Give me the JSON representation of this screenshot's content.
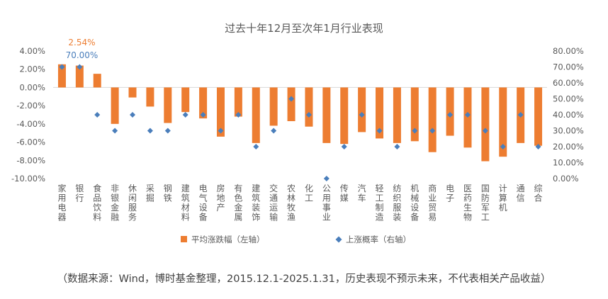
{
  "chart_data": {
    "type": "bar",
    "title": "过去十年12月至次年1月行业表现",
    "categories": [
      "家用电器",
      "银行",
      "食品饮料",
      "非银金融",
      "休闲服务",
      "采掘",
      "钢铁",
      "建筑材料",
      "电气设备",
      "房地产",
      "有色金属",
      "建筑装饰",
      "交通运输",
      "农林牧渔",
      "化工",
      "公用事业",
      "传媒",
      "汽车",
      "轻工制造",
      "纺织服装",
      "机械设备",
      "商业贸易",
      "电子",
      "医药生物",
      "国防军工",
      "计算机",
      "通信",
      "综合"
    ],
    "series": [
      {
        "name": "平均涨跌幅（左轴）",
        "kind": "bar",
        "axis": "left",
        "color": "#ED7D31",
        "values": [
          2.54,
          2.4,
          1.5,
          -4.0,
          -1.1,
          -2.1,
          -3.9,
          -2.7,
          -3.4,
          -5.4,
          -3.2,
          -6.1,
          -4.2,
          -3.7,
          -4.3,
          -6.1,
          -6.2,
          -4.9,
          -5.6,
          -6.1,
          -5.9,
          -7.1,
          -5.3,
          -6.6,
          -8.1,
          -7.6,
          -6.1,
          -6.4
        ]
      },
      {
        "name": "上涨概率（右轴）",
        "kind": "scatter",
        "axis": "right",
        "color": "#4A7EBB",
        "values": [
          70,
          70,
          40,
          30,
          40,
          30,
          30,
          40,
          40,
          30,
          40,
          20,
          30,
          50,
          40,
          0,
          20,
          40,
          30,
          20,
          30,
          30,
          40,
          40,
          30,
          20,
          40,
          20
        ]
      }
    ],
    "annotations": [
      {
        "text": "2.54%",
        "category": "家用电器",
        "color": "#ED7D31"
      },
      {
        "text": "70.00%",
        "category": "家用电器",
        "color": "#4A7EBB"
      }
    ],
    "y_left": {
      "min": -10,
      "max": 4,
      "step": 2,
      "format": "percent2"
    },
    "y_right": {
      "min": 0,
      "max": 80,
      "step": 10,
      "format": "percent2"
    },
    "legend_position": "bottom",
    "grid": false
  },
  "note": "（数据来源：Wind，博时基金整理，2015.12.1-2025.1.31，历史表现不预示未来，不代表相关产品收益）"
}
